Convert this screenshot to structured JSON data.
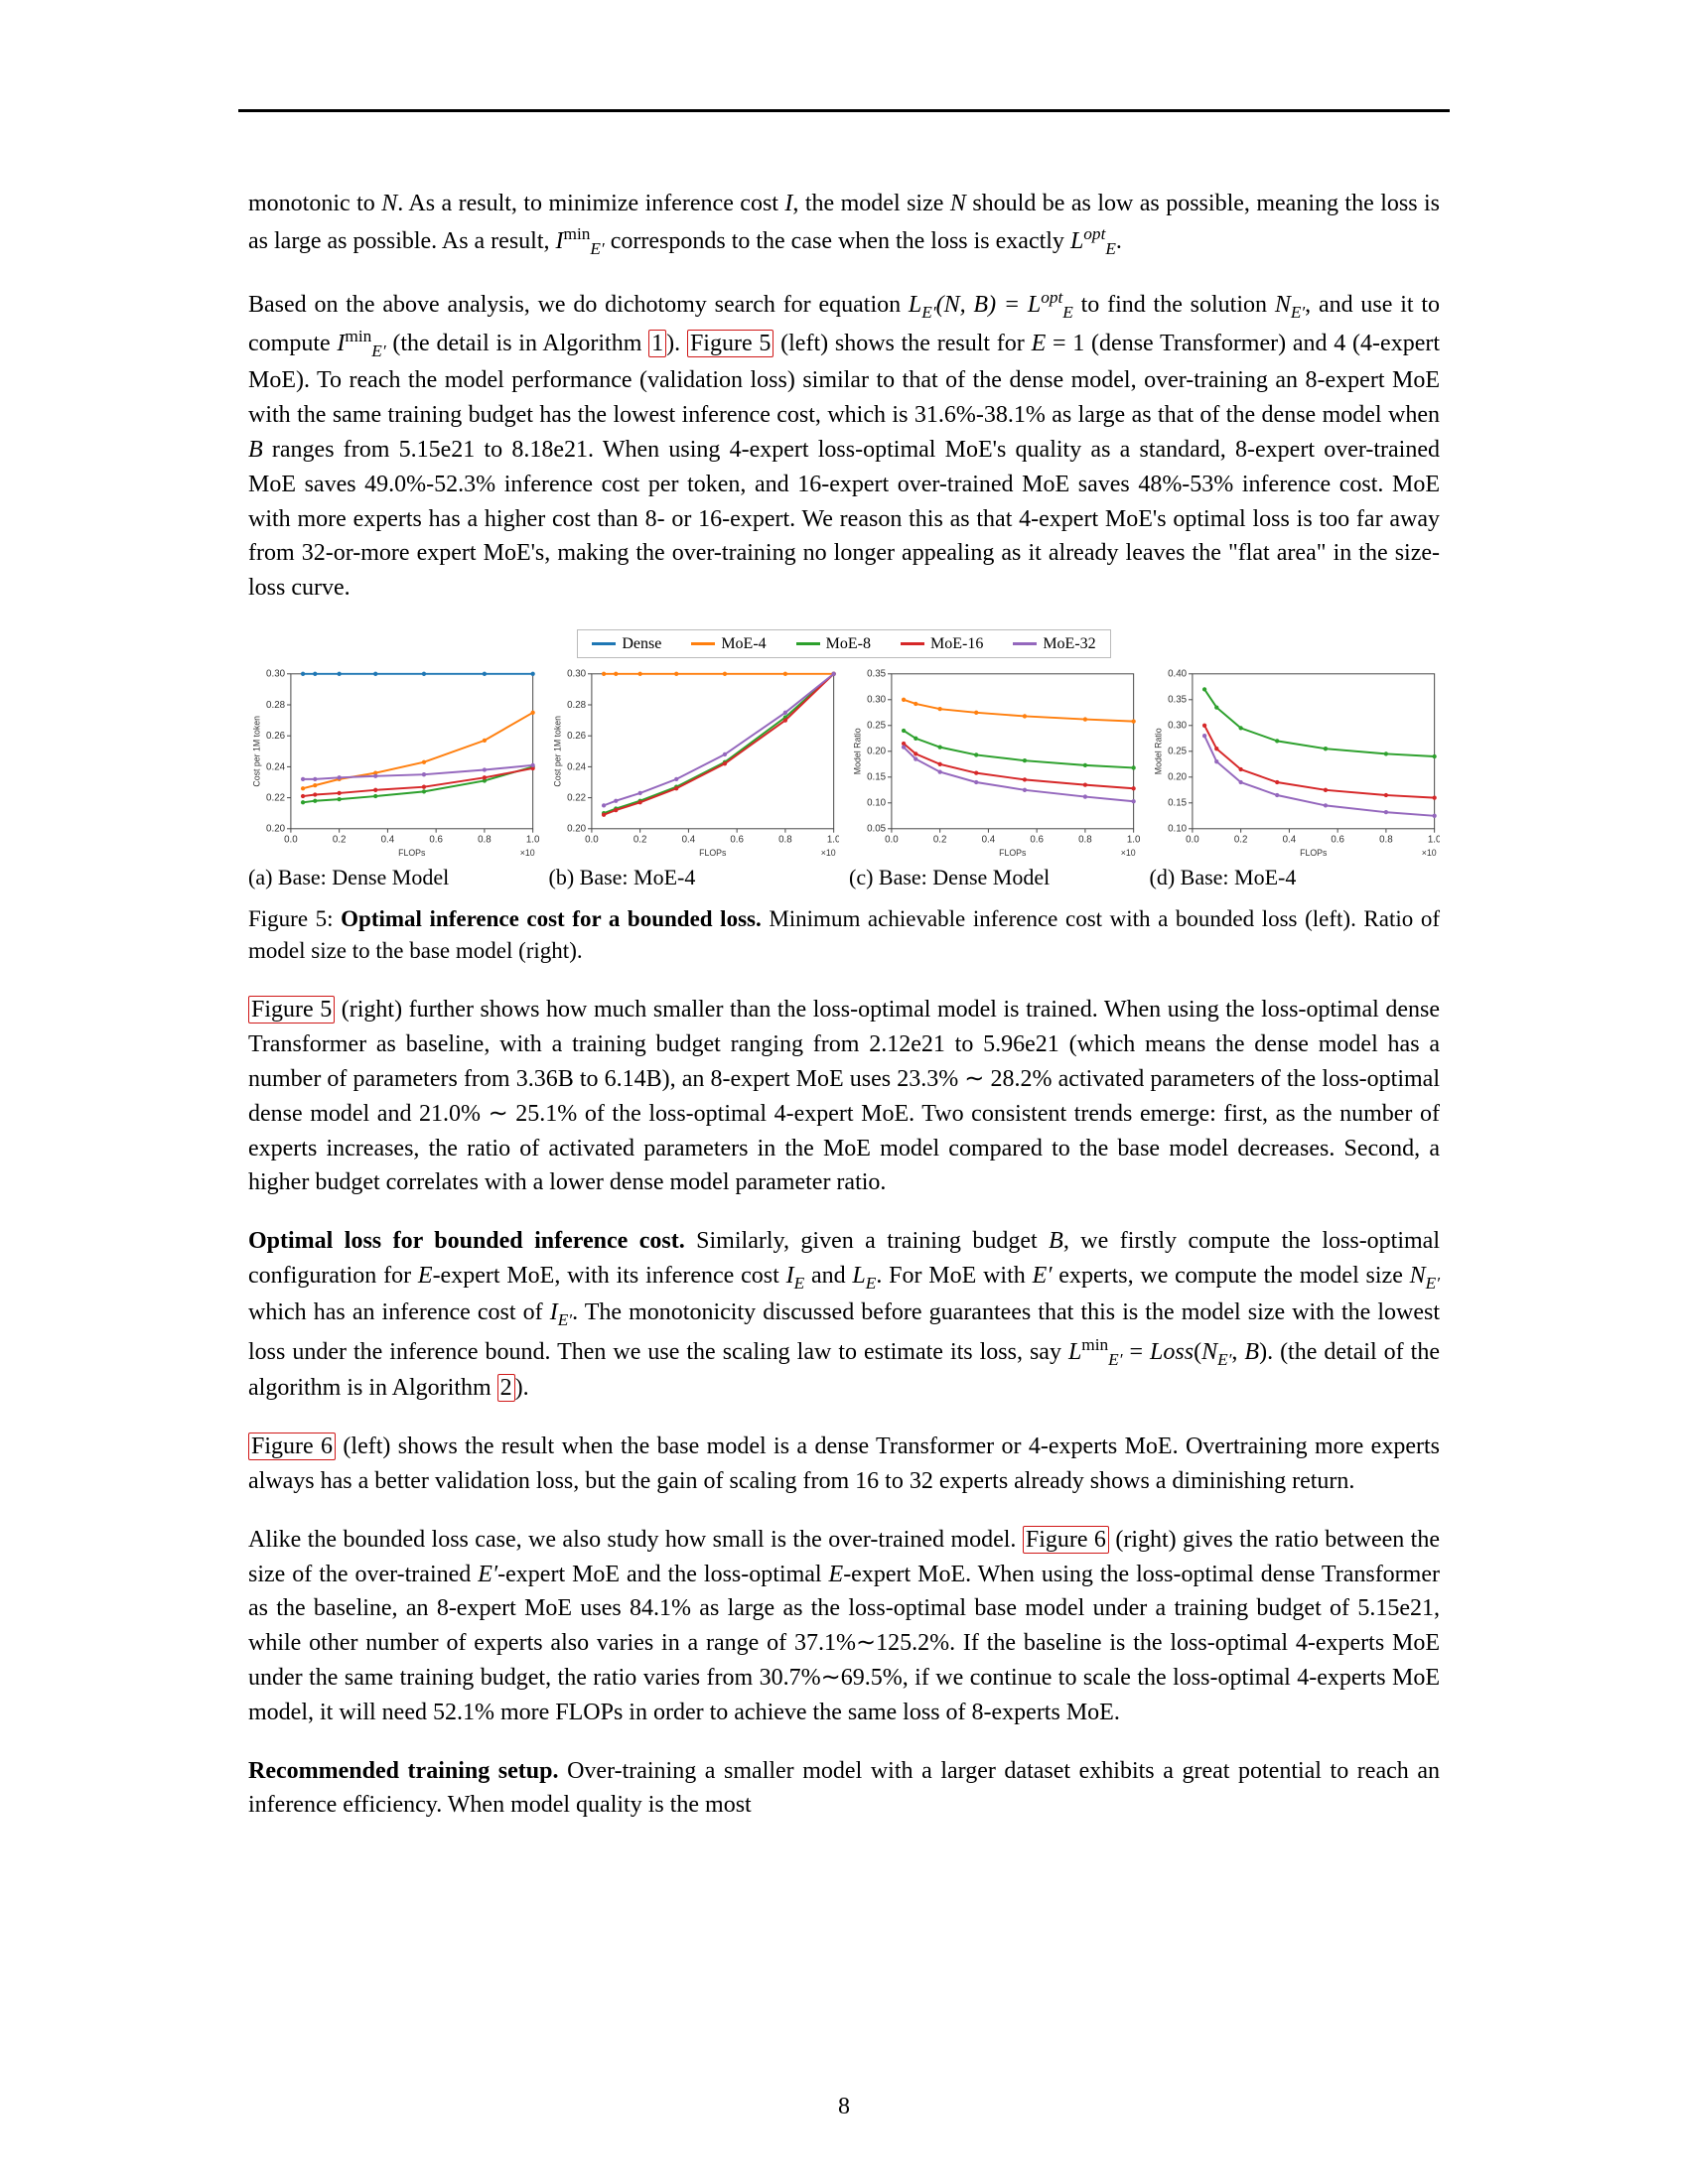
{
  "colors": {
    "dense": "#1f77b4",
    "moe4": "#ff7f0e",
    "moe8": "#2ca02c",
    "moe16": "#d62728",
    "moe32": "#9467bd",
    "ref_border": "#d01818",
    "axis": "#444444",
    "bg": "#ffffff"
  },
  "top_paragraph_1": {
    "pre": "monotonic to ",
    "N": "N",
    "mid1": ". As a result, to minimize inference cost ",
    "I": "I",
    "mid2": ", the model size ",
    "N2": "N",
    "mid3": " should be as low as possible, meaning the loss is as large as possible. As a result, ",
    "Imin": "I",
    "Imin_sup": "min",
    "Imin_sub": "E′",
    "mid4": " corresponds to the case when the loss is exactly ",
    "L": "L",
    "L_sup": "opt",
    "L_sub": "E",
    "end": "."
  },
  "paragraph_2a": "Based on the above analysis, we do dichotomy search for equation ",
  "paragraph_2_eq1_L": "L",
  "paragraph_2_eq1_sub": "E′",
  "paragraph_2_eq1_paren": "(N, B) = ",
  "paragraph_2_eq1_L2": "L",
  "paragraph_2_eq1_sup": "opt",
  "paragraph_2_eq1_sub2": "E",
  "paragraph_2b": " to find the solution ",
  "paragraph_2_N": "N",
  "paragraph_2_N_sub": "E′",
  "paragraph_2c": ", and use it to compute ",
  "paragraph_2_I": "I",
  "paragraph_2_I_sup": "min",
  "paragraph_2_I_sub": "E′",
  "paragraph_2d": " (the detail is in Algorithm ",
  "paragraph_2_alg": "1",
  "paragraph_2e": "). ",
  "paragraph_2_fig": "Figure 5",
  "paragraph_2f": " (left) shows the result for ",
  "paragraph_2_E": "E",
  "paragraph_2g": " = 1 (dense Transformer) and 4 (4-expert MoE). To reach the model performance (validation loss) similar to that of the dense model, over-training an 8-expert MoE with the same training budget has the lowest inference cost, which is 31.6%-38.1% as large as that of the dense model when ",
  "paragraph_2_B": "B",
  "paragraph_2h": " ranges from 5.15e21 to 8.18e21. When using 4-expert loss-optimal MoE's quality as a standard, 8-expert over-trained MoE saves 49.0%-52.3% inference cost per token, and 16-expert over-trained MoE saves 48%-53% inference cost. MoE with more experts has a higher cost than 8- or 16-expert. We reason this as that 4-expert MoE's optimal loss is too far away from 32-or-more expert MoE's, making the over-training no longer appealing as it already leaves the \"flat area\" in the size-loss curve.",
  "legend": {
    "dense": "Dense",
    "moe4": "MoE-4",
    "moe8": "MoE-8",
    "moe16": "MoE-16",
    "moe32": "MoE-32"
  },
  "panels": {
    "a": {
      "caption": "(a) Base: Dense Model",
      "ylabel": "Cost per 1M token",
      "xlabel": "FLOPs",
      "ylim": [
        0.2,
        0.3
      ],
      "ytick_step": 0.02,
      "xlim": [
        0.0,
        1.0
      ],
      "xtick_step": 0.2,
      "x_exp": "×10",
      "series": {
        "dense": [
          [
            0.05,
            0.3
          ],
          [
            0.1,
            0.3
          ],
          [
            0.2,
            0.3
          ],
          [
            0.35,
            0.3
          ],
          [
            0.55,
            0.3
          ],
          [
            0.8,
            0.3
          ],
          [
            1.0,
            0.3
          ]
        ],
        "moe4": [
          [
            0.05,
            0.226
          ],
          [
            0.1,
            0.228
          ],
          [
            0.2,
            0.232
          ],
          [
            0.35,
            0.236
          ],
          [
            0.55,
            0.243
          ],
          [
            0.8,
            0.257
          ],
          [
            1.0,
            0.275
          ]
        ],
        "moe8": [
          [
            0.05,
            0.217
          ],
          [
            0.1,
            0.218
          ],
          [
            0.2,
            0.219
          ],
          [
            0.35,
            0.221
          ],
          [
            0.55,
            0.224
          ],
          [
            0.8,
            0.231
          ],
          [
            1.0,
            0.24
          ]
        ],
        "moe16": [
          [
            0.05,
            0.221
          ],
          [
            0.1,
            0.222
          ],
          [
            0.2,
            0.223
          ],
          [
            0.35,
            0.225
          ],
          [
            0.55,
            0.227
          ],
          [
            0.8,
            0.233
          ],
          [
            1.0,
            0.239
          ]
        ],
        "moe32": [
          [
            0.05,
            0.232
          ],
          [
            0.1,
            0.232
          ],
          [
            0.2,
            0.233
          ],
          [
            0.35,
            0.234
          ],
          [
            0.55,
            0.235
          ],
          [
            0.8,
            0.238
          ],
          [
            1.0,
            0.241
          ]
        ]
      }
    },
    "b": {
      "caption": "(b) Base: MoE-4",
      "ylabel": "Cost per 1M token",
      "xlabel": "FLOPs",
      "ylim": [
        0.2,
        0.3
      ],
      "ytick_step": 0.02,
      "xlim": [
        0.0,
        1.0
      ],
      "xtick_step": 0.2,
      "x_exp": "×10",
      "series": {
        "moe4": [
          [
            0.05,
            0.3
          ],
          [
            0.1,
            0.3
          ],
          [
            0.2,
            0.3
          ],
          [
            0.35,
            0.3
          ],
          [
            0.55,
            0.3
          ],
          [
            0.8,
            0.3
          ],
          [
            1.0,
            0.3
          ]
        ],
        "moe8": [
          [
            0.05,
            0.21
          ],
          [
            0.1,
            0.213
          ],
          [
            0.2,
            0.218
          ],
          [
            0.35,
            0.227
          ],
          [
            0.55,
            0.243
          ],
          [
            0.8,
            0.272
          ],
          [
            1.0,
            0.3
          ]
        ],
        "moe16": [
          [
            0.05,
            0.209
          ],
          [
            0.1,
            0.212
          ],
          [
            0.2,
            0.217
          ],
          [
            0.35,
            0.226
          ],
          [
            0.55,
            0.242
          ],
          [
            0.8,
            0.27
          ],
          [
            1.0,
            0.3
          ]
        ],
        "moe32": [
          [
            0.05,
            0.215
          ],
          [
            0.1,
            0.218
          ],
          [
            0.2,
            0.223
          ],
          [
            0.35,
            0.232
          ],
          [
            0.55,
            0.248
          ],
          [
            0.8,
            0.275
          ],
          [
            1.0,
            0.3
          ]
        ]
      }
    },
    "c": {
      "caption": "(c) Base: Dense Model",
      "ylabel": "Model Ratio",
      "xlabel": "FLOPs",
      "ylim": [
        0.05,
        0.35
      ],
      "ytick_step": 0.05,
      "xlim": [
        0.0,
        1.0
      ],
      "xtick_step": 0.2,
      "x_exp": "×10",
      "series": {
        "moe4": [
          [
            0.05,
            0.3
          ],
          [
            0.1,
            0.292
          ],
          [
            0.2,
            0.282
          ],
          [
            0.35,
            0.275
          ],
          [
            0.55,
            0.268
          ],
          [
            0.8,
            0.262
          ],
          [
            1.0,
            0.258
          ]
        ],
        "moe8": [
          [
            0.05,
            0.24
          ],
          [
            0.1,
            0.225
          ],
          [
            0.2,
            0.208
          ],
          [
            0.35,
            0.193
          ],
          [
            0.55,
            0.182
          ],
          [
            0.8,
            0.173
          ],
          [
            1.0,
            0.168
          ]
        ],
        "moe16": [
          [
            0.05,
            0.215
          ],
          [
            0.1,
            0.195
          ],
          [
            0.2,
            0.175
          ],
          [
            0.35,
            0.158
          ],
          [
            0.55,
            0.145
          ],
          [
            0.8,
            0.135
          ],
          [
            1.0,
            0.128
          ]
        ],
        "moe32": [
          [
            0.05,
            0.208
          ],
          [
            0.1,
            0.185
          ],
          [
            0.2,
            0.16
          ],
          [
            0.35,
            0.14
          ],
          [
            0.55,
            0.125
          ],
          [
            0.8,
            0.112
          ],
          [
            1.0,
            0.103
          ]
        ]
      }
    },
    "d": {
      "caption": "(d) Base: MoE-4",
      "ylabel": "Model Ratio",
      "xlabel": "FLOPs",
      "ylim": [
        0.1,
        0.4
      ],
      "ytick_step": 0.05,
      "xlim": [
        0.0,
        1.0
      ],
      "xtick_step": 0.2,
      "x_exp": "×10",
      "series": {
        "moe8": [
          [
            0.05,
            0.37
          ],
          [
            0.1,
            0.335
          ],
          [
            0.2,
            0.295
          ],
          [
            0.35,
            0.27
          ],
          [
            0.55,
            0.255
          ],
          [
            0.8,
            0.245
          ],
          [
            1.0,
            0.24
          ]
        ],
        "moe16": [
          [
            0.05,
            0.3
          ],
          [
            0.1,
            0.255
          ],
          [
            0.2,
            0.215
          ],
          [
            0.35,
            0.19
          ],
          [
            0.55,
            0.175
          ],
          [
            0.8,
            0.165
          ],
          [
            1.0,
            0.16
          ]
        ],
        "moe32": [
          [
            0.05,
            0.28
          ],
          [
            0.1,
            0.23
          ],
          [
            0.2,
            0.19
          ],
          [
            0.35,
            0.165
          ],
          [
            0.55,
            0.145
          ],
          [
            0.8,
            0.132
          ],
          [
            1.0,
            0.125
          ]
        ]
      }
    }
  },
  "fig5": {
    "lead": "Figure 5: ",
    "bold": "Optimal inference cost for a bounded loss.",
    "rest": " Minimum achievable inference cost with a bounded loss (left). Ratio of model size to the base model (right)."
  },
  "paragraph_3a": "Figure 5",
  "paragraph_3b": " (right) further shows how much smaller than the loss-optimal model is trained. When using the loss-optimal dense Transformer as baseline, with a training budget ranging from 2.12e21 to 5.96e21 (which means the dense model has a number of parameters from 3.36B to 6.14B), an 8-expert MoE uses 23.3% ∼ 28.2% activated parameters of the loss-optimal dense model and 21.0% ∼ 25.1% of the loss-optimal 4-expert MoE. Two consistent trends emerge: first, as the number of experts increases, the ratio of activated parameters in the MoE model compared to the base model decreases. Second, a higher budget correlates with a lower dense model parameter ratio.",
  "section2": {
    "title": "Optimal loss for bounded inference cost.",
    "body_a": " Similarly, given a training budget ",
    "B": "B",
    "body_b": ", we firstly compute the loss-optimal configuration for ",
    "E": "E",
    "body_c": "-expert MoE, with its inference cost ",
    "IE": "I",
    "IE_sub": "E",
    "body_d": " and ",
    "LE": "L",
    "LE_sub": "E",
    "body_e": ". For MoE with ",
    "Ep": "E′",
    "body_f": " experts, we compute the model size ",
    "NEp": "N",
    "NEp_sub": "E′",
    "body_g": " which has an inference cost of ",
    "IEp": "I",
    "IEp_sub": "E′",
    "body_h": ". The monotonicity discussed before guarantees that this is the model size with the lowest loss under the inference bound. Then we use the scaling law to estimate its loss, say ",
    "Lmin": "L",
    "Lmin_sup": "min",
    "Lmin_sub": "E′",
    "body_i": " = ",
    "Loss": "Loss",
    "body_j": "(",
    "NEp2": "N",
    "NEp2_sub": "E′",
    "body_k": ", ",
    "B2": "B",
    "body_l": "). (the detail of the algorithm is in Algorithm ",
    "alg": "2",
    "body_m": ")."
  },
  "paragraph_5a": "Figure 6",
  "paragraph_5b": " (left) shows the result when the base model is a dense Transformer or 4-experts MoE. Overtraining more experts always has a better validation loss, but the gain of scaling from 16 to 32 experts already shows a diminishing return.",
  "paragraph_6a": "Alike the bounded loss case, we also study how small is the over-trained model. ",
  "paragraph_6_fig": "Figure 6",
  "paragraph_6b": " (right) gives the ratio between the size of the over-trained ",
  "paragraph_6_Ep": "E′",
  "paragraph_6c": "-expert MoE and the loss-optimal ",
  "paragraph_6_E": "E",
  "paragraph_6d": "-expert MoE. When using the loss-optimal dense Transformer as the baseline, an 8-expert MoE uses 84.1% as large as the loss-optimal base model under a training budget of 5.15e21, while other number of experts also varies in a range of 37.1%∼125.2%. If the baseline is the loss-optimal 4-experts MoE under the same training budget, the ratio varies from 30.7%∼69.5%, if we continue to scale the loss-optimal 4-experts MoE model, it will need 52.1% more FLOPs in order to achieve the same loss of 8-experts MoE.",
  "section3": {
    "title": "Recommended training setup.",
    "body": " Over-training a smaller model with a larger dataset exhibits a great potential to reach an inference efficiency. When model quality is the most"
  },
  "page_number": "8"
}
